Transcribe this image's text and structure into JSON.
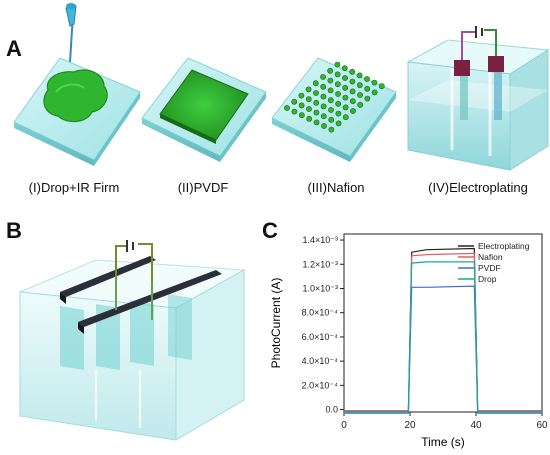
{
  "panel_a": {
    "letter": "A",
    "captions": [
      "(I)Drop+IR Firm",
      "(II)PVDF",
      "(III)Nafion",
      "(IV)Electroplating"
    ]
  },
  "panel_b": {
    "letter": "B"
  },
  "panel_c": {
    "letter": "C"
  },
  "colors": {
    "glass": "#b8ecec",
    "green": "#2fb52f",
    "dark_green": "#1f7a1f",
    "electrode": "#2a2f3a"
  },
  "chart_data": {
    "type": "line",
    "xlabel": "Time (s)",
    "ylabel": "PhotoCurrent (A)",
    "xlim": [
      0,
      60
    ],
    "ylim": [
      -2e-05,
      0.00145
    ],
    "x_ticks": [
      0,
      20,
      40,
      60
    ],
    "x_tick_labels": [
      "0",
      "20",
      "40",
      "60"
    ],
    "y_ticks": [
      0,
      0.0002,
      0.0004,
      0.0006,
      0.0008,
      0.001,
      0.0012,
      0.0014
    ],
    "y_tick_labels": [
      "0.0",
      "2.0×10⁻⁴",
      "4.0×10⁻⁴",
      "6.0×10⁻⁴",
      "8.0×10⁻⁴",
      "1.0×10⁻³",
      "1.2×10⁻³",
      "1.4×10⁻³"
    ],
    "legend_position": "top-right",
    "series": [
      {
        "name": "Electroplating",
        "color": "#222222",
        "x": [
          0,
          19.5,
          20.5,
          25,
          39.5,
          40.5,
          60
        ],
        "y": [
          -1e-05,
          -1e-05,
          0.0013,
          0.00132,
          0.00133,
          -1e-05,
          -1e-05
        ]
      },
      {
        "name": "Nafion",
        "color": "#e06060",
        "x": [
          0,
          19.5,
          20.5,
          25,
          39.5,
          40.5,
          60
        ],
        "y": [
          -1e-05,
          -1e-05,
          0.00127,
          0.00128,
          0.00129,
          -1e-05,
          -1e-05
        ]
      },
      {
        "name": "PVDF",
        "color": "#3a6fd8",
        "x": [
          0,
          19.5,
          20.5,
          25,
          39.5,
          40.5,
          60
        ],
        "y": [
          -3e-05,
          -3e-05,
          0.00101,
          0.00101,
          0.00102,
          -3e-05,
          -3e-05
        ]
      },
      {
        "name": "Drop",
        "color": "#1aa89a",
        "x": [
          0,
          19.5,
          20.5,
          25,
          39.5,
          40.5,
          60
        ],
        "y": [
          -2e-05,
          -2e-05,
          0.00121,
          0.00122,
          0.00122,
          -2e-05,
          -2e-05
        ]
      }
    ]
  }
}
